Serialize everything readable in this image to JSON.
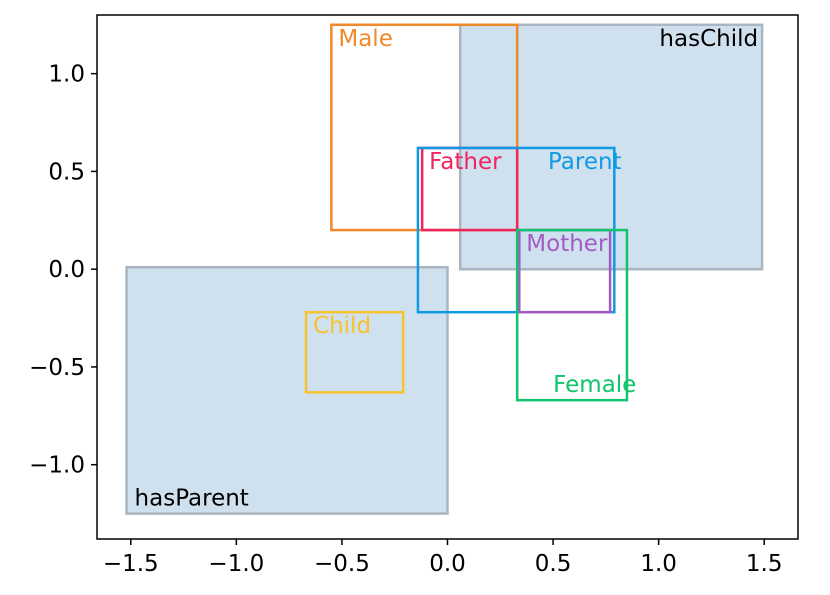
{
  "chart_data": {
    "type": "box-diagram",
    "title": "",
    "xlabel": "",
    "ylabel": "",
    "xlim": [
      -1.66,
      1.66
    ],
    "ylim": [
      -1.38,
      1.3
    ],
    "grid": false,
    "xticks": [
      {
        "value": -1.5,
        "label": "−1.5"
      },
      {
        "value": -1.0,
        "label": "−1.0"
      },
      {
        "value": -0.5,
        "label": "−0.5"
      },
      {
        "value": 0.0,
        "label": "0.0"
      },
      {
        "value": 0.5,
        "label": "0.5"
      },
      {
        "value": 1.0,
        "label": "1.0"
      },
      {
        "value": 1.5,
        "label": "1.5"
      }
    ],
    "yticks": [
      {
        "value": 1.0,
        "label": "1.0"
      },
      {
        "value": 0.5,
        "label": "0.5"
      },
      {
        "value": 0.0,
        "label": "0.0"
      },
      {
        "value": -0.5,
        "label": "−0.5"
      },
      {
        "value": -1.0,
        "label": "−1.0"
      }
    ],
    "regions": [
      {
        "id": "has-child",
        "name": "hasChild",
        "x": [
          0.06,
          1.49
        ],
        "y": [
          0.0,
          1.25
        ],
        "fill": "#cfe0ef",
        "edge": "#a9b6c1",
        "label_pos": "top-right"
      },
      {
        "id": "has-parent",
        "name": "hasParent",
        "x": [
          -1.52,
          0.0
        ],
        "y": [
          -1.25,
          0.01
        ],
        "fill": "#cfe0ef",
        "edge": "#a9b6c1",
        "label_pos": "bottom-left"
      }
    ],
    "boxes": [
      {
        "id": "male",
        "name": "Male",
        "x": [
          -0.55,
          0.33
        ],
        "y": [
          0.2,
          1.25
        ],
        "color": "#ef8a2c"
      },
      {
        "id": "father",
        "name": "Father",
        "x": [
          -0.12,
          0.33
        ],
        "y": [
          0.2,
          0.62
        ],
        "color": "#f0245e"
      },
      {
        "id": "parent",
        "name": "Parent",
        "x": [
          -0.14,
          0.79
        ],
        "y": [
          -0.22,
          0.62
        ],
        "color": "#0f9ae3"
      },
      {
        "id": "mother",
        "name": "Mother",
        "x": [
          0.34,
          0.77
        ],
        "y": [
          -0.22,
          0.2
        ],
        "color": "#a35bc2"
      },
      {
        "id": "female",
        "name": "Female",
        "x": [
          0.33,
          0.85
        ],
        "y": [
          -0.67,
          0.2
        ],
        "color": "#10c46c"
      },
      {
        "id": "child",
        "name": "Child",
        "x": [
          -0.67,
          -0.21
        ],
        "y": [
          -0.63,
          -0.22
        ],
        "color": "#f7c32c"
      }
    ]
  }
}
